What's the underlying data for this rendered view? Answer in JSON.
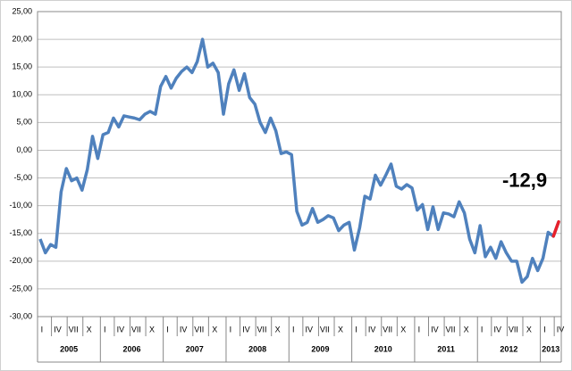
{
  "chart_data": {
    "type": "line",
    "categories": [
      "I",
      null,
      null,
      "IV",
      null,
      null,
      "VII",
      null,
      null,
      "X",
      null,
      null,
      "I",
      null,
      null,
      "IV",
      null,
      null,
      "VII",
      null,
      null,
      "X",
      null,
      null,
      "I",
      null,
      null,
      "IV",
      null,
      null,
      "VII",
      null,
      null,
      "X",
      null,
      null,
      "I",
      null,
      null,
      "IV",
      null,
      null,
      "VII",
      null,
      null,
      "X",
      null,
      null,
      "I",
      null,
      null,
      "IV",
      null,
      null,
      "VII",
      null,
      null,
      "X",
      null,
      null,
      "I",
      null,
      null,
      "IV",
      null,
      null,
      "VII",
      null,
      null,
      "X",
      null,
      null,
      "I",
      null,
      null,
      "IV",
      null,
      null,
      "VII",
      null,
      null,
      "X",
      null,
      null,
      "I",
      null,
      null,
      "IV",
      null,
      null,
      "VII",
      null,
      null,
      "X",
      null,
      null,
      "I",
      null,
      null,
      "IV"
    ],
    "years": [
      "2005",
      "2006",
      "2007",
      "2008",
      "2009",
      "2010",
      "2011",
      "2012",
      "2013"
    ],
    "values": [
      -16,
      -18.5,
      -17,
      -17.5,
      -7.5,
      -3.3,
      -5.5,
      -5,
      -7.2,
      -3.5,
      2.5,
      -1.5,
      2.8,
      3.2,
      5.8,
      4.2,
      6.2,
      6,
      5.8,
      5.5,
      6.5,
      7,
      6.5,
      11.5,
      13.3,
      11.2,
      13,
      14.2,
      15,
      14,
      16,
      20,
      15,
      15.7,
      14,
      6.5,
      12,
      14.5,
      10.8,
      13.8,
      9.5,
      8.3,
      5,
      3.2,
      5.8,
      3.5,
      -0.6,
      -0.3,
      -0.8,
      -11,
      -13.5,
      -13,
      -10.5,
      -13,
      -12.5,
      -11.8,
      -12.2,
      -14.5,
      -13.5,
      -13,
      -18,
      -14,
      -8.3,
      -8.8,
      -4.5,
      -6.3,
      -4.5,
      -2.5,
      -6.5,
      -7,
      -6.2,
      -6.8,
      -10.8,
      -9.8,
      -14.3,
      -10.2,
      -14.3,
      -11.3,
      -11.5,
      -12,
      -9.3,
      -11.3,
      -16,
      -18.5,
      -13.6,
      -19.2,
      -17.5,
      -19.5,
      -16.5,
      -18.5,
      -20,
      -20,
      -23.8,
      -22.8,
      -19.5,
      -21.7,
      -19.5,
      -14.8,
      -15.5,
      -12.9
    ],
    "value_labels": [
      null,
      null,
      null,
      null,
      null,
      null,
      null,
      null,
      null,
      null,
      null,
      null,
      null,
      null,
      null,
      null,
      null,
      null,
      null,
      null,
      null,
      null,
      null,
      null,
      null,
      null,
      null,
      null,
      null,
      null,
      null,
      null,
      null,
      null,
      null,
      null,
      null,
      null,
      null,
      null,
      null,
      null,
      null,
      null,
      null,
      null,
      null,
      null,
      null,
      null,
      null,
      null,
      null,
      null,
      null,
      null,
      null,
      null,
      null,
      null,
      null,
      null,
      null,
      null,
      null,
      null,
      null,
      null,
      null,
      null,
      null,
      null,
      null,
      null,
      null,
      null,
      null,
      null,
      null,
      null,
      null,
      null,
      null,
      null,
      null,
      null,
      null,
      null,
      null,
      null,
      null,
      null,
      null,
      null,
      null,
      null,
      null,
      null,
      null,
      "-12,9"
    ],
    "color": "#4f81bd",
    "last_segment_color": "#e8202a",
    "ylim": [
      -30,
      25
    ],
    "yticks": [
      {
        "value": -30,
        "label": "-30,00"
      },
      {
        "value": -25,
        "label": "-25,00"
      },
      {
        "value": -20,
        "label": "-20,00"
      },
      {
        "value": -15,
        "label": "-15,00"
      },
      {
        "value": -10,
        "label": "-10,00"
      },
      {
        "value": -5,
        "label": "-5,00"
      },
      {
        "value": 0,
        "label": "0,00"
      },
      {
        "value": 5,
        "label": "5,00"
      },
      {
        "value": 10,
        "label": "10,00"
      },
      {
        "value": 15,
        "label": "15,00"
      },
      {
        "value": 20,
        "label": "20,00"
      },
      {
        "value": 25,
        "label": "25,00"
      }
    ],
    "grid": true
  }
}
